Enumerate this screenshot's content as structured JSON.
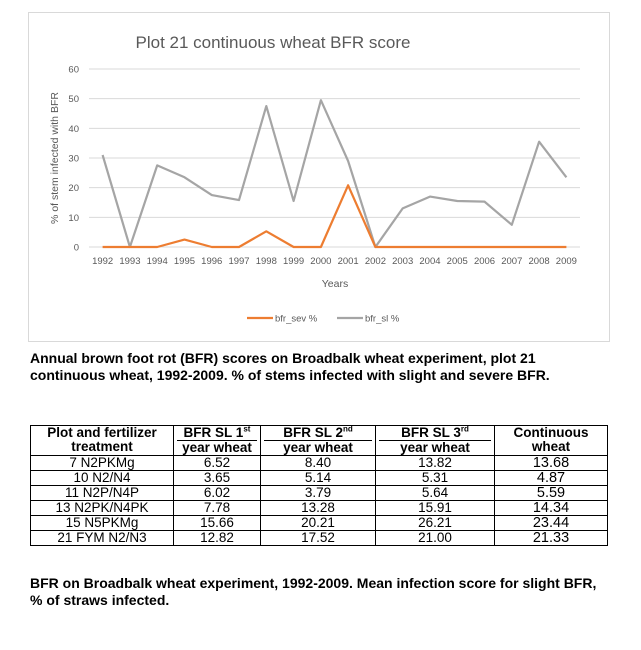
{
  "chart_data": {
    "type": "line",
    "title": "Plot 21 continuous wheat BFR score",
    "xlabel": "Years",
    "ylabel": "% of stem infected with BFR",
    "ylim": [
      0,
      60
    ],
    "yticks": [
      "0",
      "10",
      "20",
      "30",
      "40",
      "50",
      "60"
    ],
    "grid": true,
    "legend_position": "bottom",
    "categories": [
      "1992",
      "1993",
      "1994",
      "1995",
      "1996",
      "1997",
      "1998",
      "1999",
      "2000",
      "2001",
      "2002",
      "2003",
      "2004",
      "2005",
      "2006",
      "2007",
      "2008",
      "2009"
    ],
    "series": [
      {
        "name": "bfr_sev %",
        "color": "#ED7D31",
        "values": [
          0,
          0,
          0,
          2.5,
          0,
          0,
          5.3,
          0,
          0,
          20.8,
          0,
          0,
          0,
          0,
          0,
          0,
          0,
          0
        ]
      },
      {
        "name": "bfr_sl %",
        "color": "#A5A5A5",
        "values": [
          31,
          0,
          27.5,
          23.5,
          17.5,
          15.8,
          47.5,
          15.5,
          49.5,
          29,
          0,
          13,
          17,
          15.5,
          15.3,
          7.5,
          35.5,
          23.5
        ]
      }
    ]
  },
  "caption1": {
    "line1": "Annual brown foot rot (BFR) scores on Broadbalk wheat experiment, plot 21",
    "line2": "continuous wheat, 1992-2009. % of stems infected with slight and severe BFR."
  },
  "table": {
    "headers": [
      {
        "line1": "Plot and fertilizer",
        "line2": "treatment"
      },
      {
        "line1a": "BFR SL 1",
        "line1sup": "st",
        "line2": "year wheat"
      },
      {
        "line1a": "BFR SL 2",
        "line1sup": "nd",
        "line2": "year wheat"
      },
      {
        "line1a": "BFR SL 3",
        "line1sup": "rd",
        "line2": "year wheat"
      },
      {
        "line1": "Continuous",
        "line2": "wheat"
      }
    ],
    "rows": [
      [
        "7 N2PKMg",
        "6.52",
        "8.40",
        "13.82",
        "13.68"
      ],
      [
        "10 N2/N4",
        "3.65",
        "5.14",
        "5.31",
        "4.87"
      ],
      [
        "11 N2P/N4P",
        "6.02",
        "3.79",
        "5.64",
        "5.59"
      ],
      [
        "13 N2PK/N4PK",
        "7.78",
        "13.28",
        "15.91",
        "14.34"
      ],
      [
        "15 N5PKMg",
        "15.66",
        "20.21",
        "26.21",
        "23.44"
      ],
      [
        "21 FYM N2/N3",
        "12.82",
        "17.52",
        "21.00",
        "21.33"
      ]
    ]
  },
  "caption2": {
    "line1": "BFR on Broadbalk wheat experiment, 1992-2009. Mean infection score for slight BFR,",
    "line2": "% of straws infected."
  }
}
